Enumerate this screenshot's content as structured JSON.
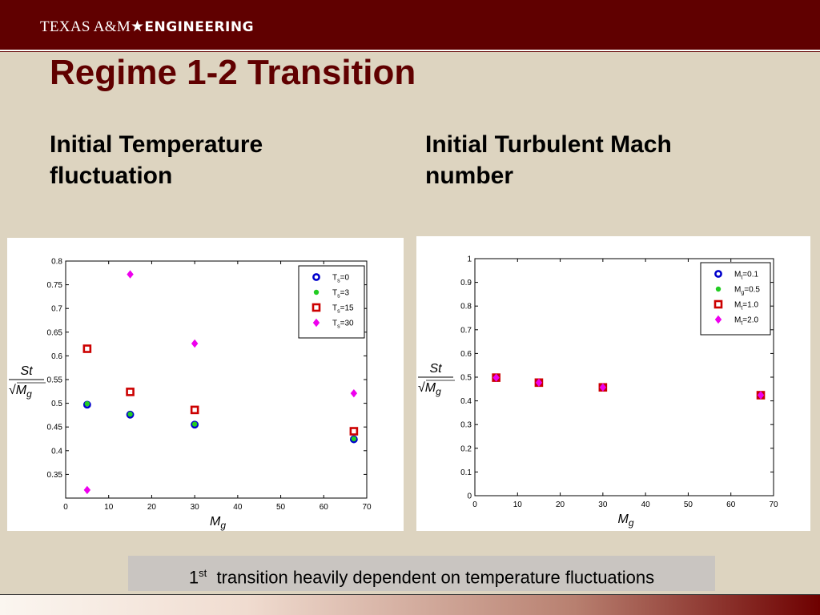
{
  "header": {
    "logo_part1": "TEXAS A&M",
    "logo_star": "★",
    "logo_part2": "ENGINEERING"
  },
  "slide": {
    "title": "Regime 1-2 Transition",
    "left_heading": "Initial Temperature fluctuation",
    "right_heading": "Initial Turbulent Mach number",
    "caption_sup": "st",
    "caption_num": "1",
    "caption_text": "transition heavily dependent on temperature fluctuations"
  },
  "chart_data": [
    {
      "type": "scatter",
      "xlabel": "M_g",
      "ylabel": "St/√M_g",
      "xlim": [
        0,
        70
      ],
      "ylim": [
        0.3,
        0.8
      ],
      "xticks": [
        0,
        10,
        20,
        30,
        40,
        50,
        60,
        70
      ],
      "yticks": [
        0.35,
        0.4,
        0.45,
        0.5,
        0.55,
        0.6,
        0.65,
        0.7,
        0.75,
        0.8
      ],
      "legend_placement": "top-right",
      "series": [
        {
          "name": "T_s=0",
          "marker": "circle",
          "color": "#0000cc",
          "x": [
            5,
            15,
            30,
            67
          ],
          "y": [
            0.497,
            0.476,
            0.455,
            0.424
          ]
        },
        {
          "name": "T_s=3",
          "marker": "dot",
          "color": "#22cc22",
          "x": [
            5,
            15,
            30,
            67
          ],
          "y": [
            0.499,
            0.477,
            0.456,
            0.425
          ]
        },
        {
          "name": "T_s=15",
          "marker": "square",
          "color": "#cc0000",
          "x": [
            5,
            15,
            30,
            67
          ],
          "y": [
            0.615,
            0.524,
            0.486,
            0.441
          ]
        },
        {
          "name": "T_s=30",
          "marker": "diamond",
          "color": "#ee00ee",
          "x": [
            5,
            15,
            30,
            67
          ],
          "y": [
            0.317,
            0.772,
            0.626,
            0.521
          ]
        }
      ]
    },
    {
      "type": "scatter",
      "xlabel": "M_g",
      "ylabel": "St/√M_g",
      "xlim": [
        0,
        70
      ],
      "ylim": [
        0,
        1
      ],
      "xticks": [
        0,
        10,
        20,
        30,
        40,
        50,
        60,
        70
      ],
      "yticks": [
        0,
        0.1,
        0.2,
        0.3,
        0.4,
        0.5,
        0.6,
        0.7,
        0.8,
        0.9,
        1
      ],
      "legend_placement": "top-right",
      "series": [
        {
          "name": "M_t=0.1",
          "marker": "circle",
          "color": "#0000cc",
          "x": [
            5,
            15,
            30,
            67
          ],
          "y": [
            0.497,
            0.476,
            0.456,
            0.424
          ]
        },
        {
          "name": "M_g=0.5",
          "marker": "dot",
          "color": "#22cc22",
          "x": [
            5,
            15,
            30,
            67
          ],
          "y": [
            0.498,
            0.477,
            0.457,
            0.425
          ]
        },
        {
          "name": "M_t=1.0",
          "marker": "square",
          "color": "#cc0000",
          "x": [
            5,
            15,
            30,
            67
          ],
          "y": [
            0.498,
            0.477,
            0.457,
            0.424
          ]
        },
        {
          "name": "M_t=2.0",
          "marker": "diamond",
          "color": "#ee00ee",
          "x": [
            5,
            15,
            30,
            67
          ],
          "y": [
            0.498,
            0.477,
            0.457,
            0.424
          ]
        }
      ]
    }
  ]
}
